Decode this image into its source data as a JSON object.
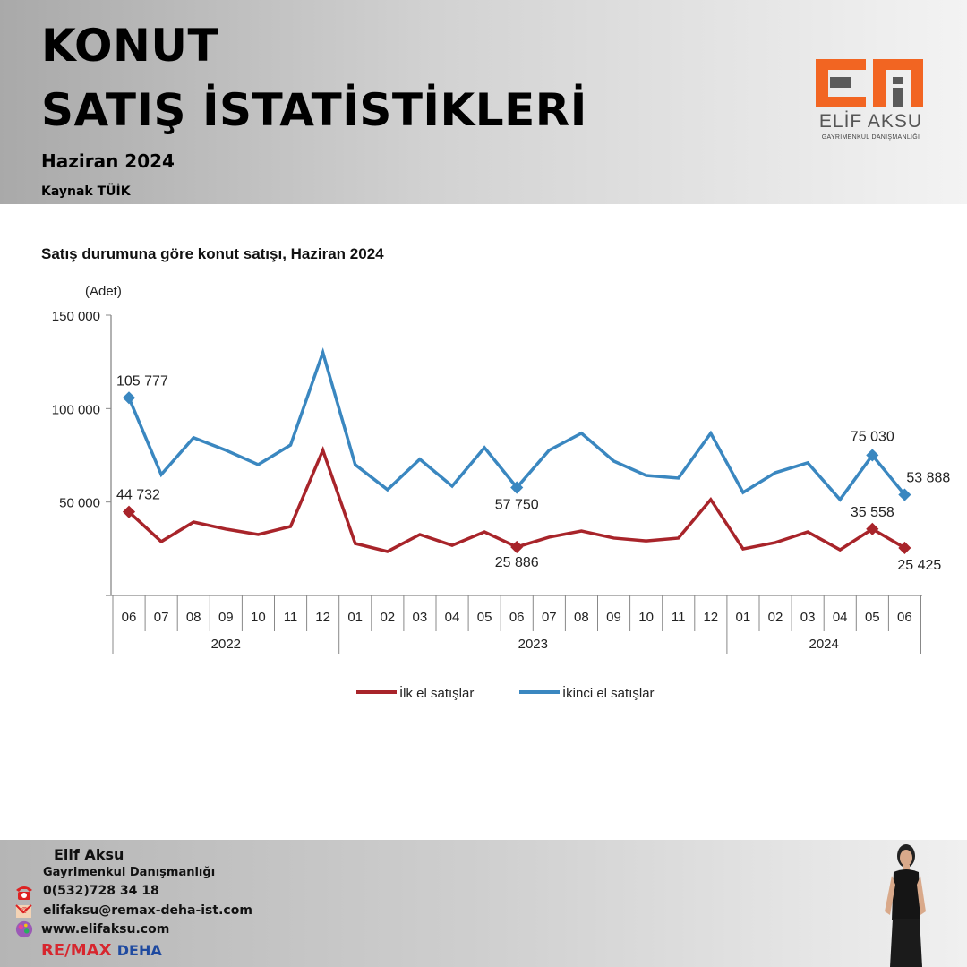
{
  "header": {
    "title_line1": "KONUT",
    "title_line2": "SATIŞ İSTATİSTİKLERİ",
    "subtitle": "Haziran 2024",
    "source": "Kaynak TÜİK"
  },
  "logo": {
    "name": "ELİF AKSU",
    "tagline": "GAYRIMENKUL DANIŞMANLIĞI",
    "accent": "#f26522"
  },
  "chart_data": {
    "type": "line",
    "title": "Satış durumuna göre konut satışı, Haziran 2024",
    "ylabel": "(Adet)",
    "xlabel": "",
    "ylim": [
      0,
      150000
    ],
    "yticks": [
      {
        "value": 50000,
        "label": "50 000"
      },
      {
        "value": 100000,
        "label": "100 000"
      },
      {
        "value": 150000,
        "label": "150 000"
      }
    ],
    "categories": [
      "06",
      "07",
      "08",
      "09",
      "10",
      "11",
      "12",
      "01",
      "02",
      "03",
      "04",
      "05",
      "06",
      "07",
      "08",
      "09",
      "10",
      "11",
      "12",
      "01",
      "02",
      "03",
      "04",
      "05",
      "06"
    ],
    "year_groups": [
      {
        "label": "2022",
        "start": 0,
        "end": 6
      },
      {
        "label": "2023",
        "start": 7,
        "end": 18
      },
      {
        "label": "2024",
        "start": 19,
        "end": 24
      }
    ],
    "grid": false,
    "legend_position": "bottom",
    "series": [
      {
        "name": "İlk el satışlar",
        "color": "#a8242a",
        "values": [
          44732,
          28800,
          39300,
          35500,
          32600,
          36900,
          77700,
          27800,
          23500,
          32600,
          26800,
          34000,
          25886,
          31200,
          34500,
          30700,
          29200,
          30700,
          51300,
          24900,
          28300,
          34000,
          24400,
          35558,
          25425
        ],
        "labels": [
          {
            "index": 0,
            "text": "44 732"
          },
          {
            "index": 12,
            "text": "25 886"
          },
          {
            "index": 23,
            "text": "35 558"
          },
          {
            "index": 24,
            "text": "25 425"
          }
        ]
      },
      {
        "name": "İkinci el satışlar",
        "color": "#3a87c0",
        "values": [
          105777,
          64700,
          84400,
          77700,
          70000,
          80500,
          130000,
          70000,
          56600,
          72900,
          58500,
          79100,
          57750,
          77700,
          86800,
          71900,
          64200,
          62800,
          86800,
          55100,
          65700,
          71000,
          51300,
          75030,
          53888
        ],
        "labels": [
          {
            "index": 0,
            "text": "105 777"
          },
          {
            "index": 12,
            "text": "57 750"
          },
          {
            "index": 23,
            "text": "75 030"
          },
          {
            "index": 24,
            "text": "53 888"
          }
        ]
      }
    ]
  },
  "footer": {
    "name": "Elif Aksu",
    "job": "Gayrimenkul Danışmanlığı",
    "phone": "0(532)728 34 18",
    "email": "elifaksu@remax-deha-ist.com",
    "website": "www.elifaksu.com",
    "brand_remax": "RE/MAX",
    "brand_office": "DEHA"
  }
}
